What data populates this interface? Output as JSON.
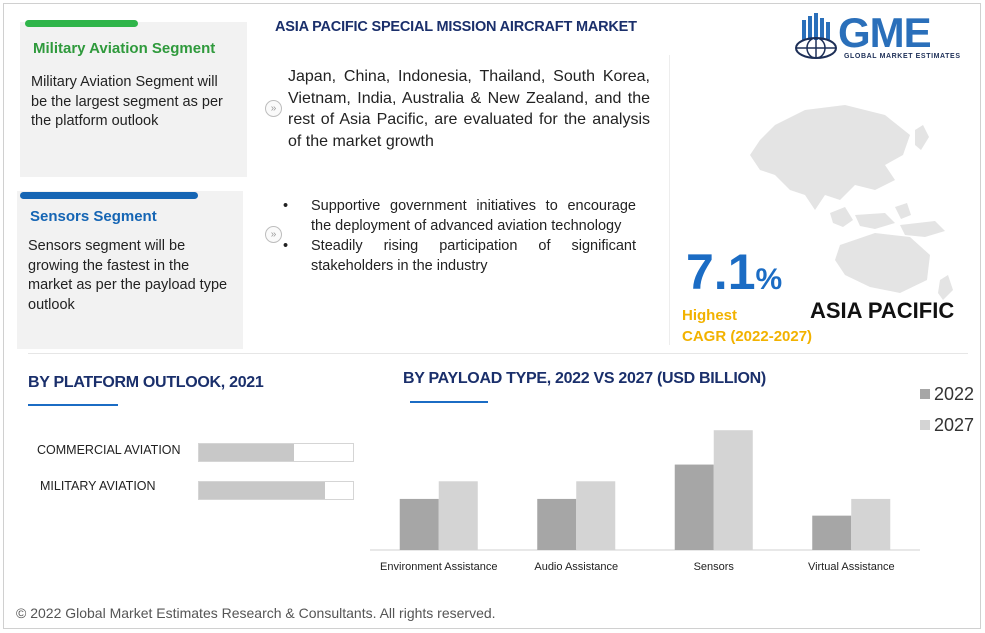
{
  "header": {
    "title": "ASIA PACIFIC SPECIAL MISSION AIRCRAFT MARKET",
    "logo_letters": "GME",
    "logo_subtitle": "GLOBAL MARKET ESTIMATES"
  },
  "cards": [
    {
      "title": "Military Aviation Segment",
      "text": "Military Aviation  Segment will be the largest segment as per the platform outlook",
      "accent": "#2fb54a"
    },
    {
      "title": "Sensors Segment",
      "text": "Sensors segment will be growing the fastest in the market as per the payload type outlook",
      "accent": "#1565b4"
    }
  ],
  "summary": {
    "paragraph": "Japan, China, Indonesia, Thailand, South Korea, Vietnam, India, Australia & New Zealand, and the rest of Asia Pacific, are evaluated for the analysis of the market growth",
    "bullets": [
      "Supportive government initiatives to encourage the deployment of advanced aviation technology",
      "Steadily rising participation of significant stakeholders in the industry"
    ],
    "bullet_glyph": "•"
  },
  "cagr": {
    "value": "7.1",
    "unit": "%",
    "label_1": "Highest",
    "label_2": "CAGR (2022-2027)",
    "region": "ASIA PACIFIC",
    "value_color": "#1b6cc4",
    "label_color": "#f2b200"
  },
  "platform_outlook": {
    "title": "BY PLATFORM OUTLOOK, 2021",
    "bars": [
      {
        "label": "COMMERCIAL AVIATION",
        "share": 0.62
      },
      {
        "label": "MILITARY AVIATION",
        "share": 0.82
      }
    ]
  },
  "chart_data": {
    "type": "bar",
    "title": "BY PAYLOAD TYPE, 2022 VS 2027 (USD BILLION)",
    "categories": [
      "Environment Assistance",
      "Audio Assistance",
      "Sensors",
      "Virtual Assistance"
    ],
    "series": [
      {
        "name": "2022",
        "values": [
          0.55,
          0.55,
          0.92,
          0.37
        ],
        "color": "#a6a6a6"
      },
      {
        "name": "2027",
        "values": [
          0.74,
          0.74,
          1.29,
          0.55
        ],
        "color": "#d4d4d4"
      }
    ],
    "ylim": [
      0,
      1.4
    ],
    "grid": false,
    "legend": "top-right"
  },
  "footer": {
    "copyright": "© 2022 Global Market Estimates Research & Consultants. All rights reserved."
  }
}
